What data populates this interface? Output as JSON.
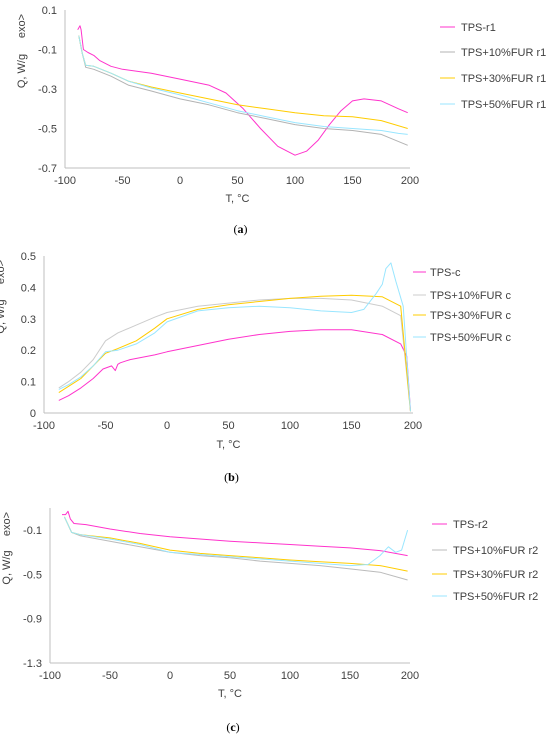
{
  "chart_data": [
    {
      "type": "line",
      "caption": "a",
      "xlabel": "T, °C",
      "ylabel": "Q, W/g",
      "exo_label": "exo>",
      "xlim": [
        -100,
        200
      ],
      "ylim": [
        -0.7,
        0.1
      ],
      "xticks": [
        "-100",
        "-50",
        "0",
        "50",
        "100",
        "150",
        "200"
      ],
      "yticks": [
        "0.1",
        "-0.1",
        "-0.3",
        "-0.5",
        "-0.7"
      ],
      "grid": false,
      "legend": "right",
      "series": [
        {
          "name": "TPS-r1",
          "color": "#ff33cc",
          "x": [
            -89,
            -87,
            -86,
            -84,
            -80,
            -75,
            -70,
            -60,
            -50,
            -25,
            0,
            25,
            40,
            55,
            70,
            85,
            100,
            110,
            120,
            130,
            140,
            150,
            160,
            175,
            190,
            198
          ],
          "y": [
            0.0,
            0.02,
            0.0,
            -0.1,
            -0.115,
            -0.13,
            -0.155,
            -0.185,
            -0.2,
            -0.22,
            -0.25,
            -0.28,
            -0.32,
            -0.4,
            -0.5,
            -0.59,
            -0.635,
            -0.615,
            -0.56,
            -0.48,
            -0.41,
            -0.36,
            -0.35,
            -0.36,
            -0.4,
            -0.42
          ]
        },
        {
          "name": "TPS+10%FUR r1",
          "color": "#b3b3b3",
          "x": [
            -88,
            -85,
            -82,
            -75,
            -60,
            -45,
            -25,
            0,
            25,
            50,
            75,
            100,
            125,
            150,
            175,
            198
          ],
          "y": [
            -0.03,
            -0.12,
            -0.19,
            -0.2,
            -0.235,
            -0.28,
            -0.31,
            -0.35,
            -0.38,
            -0.42,
            -0.45,
            -0.48,
            -0.5,
            -0.51,
            -0.53,
            -0.585
          ]
        },
        {
          "name": "TPS+30%FUR r1",
          "color": "#ffcc00",
          "x": [
            -88,
            -85,
            -82,
            -75,
            -60,
            -45,
            -25,
            0,
            25,
            50,
            75,
            100,
            125,
            150,
            175,
            198
          ],
          "y": [
            -0.03,
            -0.12,
            -0.18,
            -0.185,
            -0.22,
            -0.26,
            -0.29,
            -0.32,
            -0.35,
            -0.38,
            -0.4,
            -0.42,
            -0.435,
            -0.44,
            -0.46,
            -0.5
          ]
        },
        {
          "name": "TPS+50%FUR r1",
          "color": "#99e6ff",
          "x": [
            -88,
            -85,
            -82,
            -75,
            -60,
            -45,
            -25,
            0,
            25,
            50,
            75,
            100,
            125,
            150,
            175,
            190,
            198
          ],
          "y": [
            -0.03,
            -0.12,
            -0.18,
            -0.185,
            -0.22,
            -0.26,
            -0.295,
            -0.33,
            -0.37,
            -0.41,
            -0.44,
            -0.47,
            -0.49,
            -0.5,
            -0.51,
            -0.525,
            -0.53
          ]
        }
      ]
    },
    {
      "type": "line",
      "caption": "b",
      "xlabel": "T, °C",
      "ylabel": "Q, W/g",
      "exo_label": "exo>",
      "xlim": [
        -100,
        200
      ],
      "ylim": [
        0,
        0.5
      ],
      "xticks": [
        "-100",
        "-50",
        "0",
        "50",
        "100",
        "150",
        "200"
      ],
      "yticks": [
        "0.5",
        "0.4",
        "0.3",
        "0.2",
        "0.1",
        "0"
      ],
      "grid": false,
      "legend": "right",
      "series": [
        {
          "name": "TPS-c",
          "color": "#ff33cc",
          "x": [
            -88,
            -80,
            -70,
            -60,
            -52,
            -45,
            -42,
            -40,
            -38,
            -30,
            -10,
            0,
            25,
            50,
            75,
            100,
            125,
            150,
            175,
            190,
            195,
            198
          ],
          "y": [
            0.04,
            0.055,
            0.08,
            0.11,
            0.14,
            0.15,
            0.135,
            0.155,
            0.16,
            0.17,
            0.185,
            0.195,
            0.215,
            0.235,
            0.25,
            0.26,
            0.265,
            0.265,
            0.25,
            0.22,
            0.18,
            0.005
          ]
        },
        {
          "name": "TPS+10%FUR c",
          "color": "#cccccc",
          "x": [
            -88,
            -80,
            -70,
            -60,
            -50,
            -40,
            -25,
            -10,
            0,
            25,
            50,
            75,
            100,
            125,
            150,
            175,
            190,
            198
          ],
          "y": [
            0.08,
            0.1,
            0.13,
            0.17,
            0.23,
            0.255,
            0.28,
            0.305,
            0.32,
            0.34,
            0.35,
            0.36,
            0.365,
            0.365,
            0.36,
            0.34,
            0.31,
            0.005
          ]
        },
        {
          "name": "TPS+30%FUR c",
          "color": "#ffcc00",
          "x": [
            -88,
            -80,
            -70,
            -60,
            -50,
            -40,
            -25,
            -10,
            0,
            25,
            50,
            75,
            100,
            125,
            150,
            175,
            190,
            198
          ],
          "y": [
            0.065,
            0.085,
            0.11,
            0.15,
            0.19,
            0.205,
            0.23,
            0.27,
            0.3,
            0.33,
            0.345,
            0.355,
            0.365,
            0.372,
            0.375,
            0.37,
            0.34,
            0.005
          ]
        },
        {
          "name": "TPS+50%FUR c",
          "color": "#99e6ff",
          "x": [
            -88,
            -80,
            -70,
            -60,
            -50,
            -40,
            -25,
            -10,
            0,
            25,
            50,
            75,
            100,
            125,
            150,
            160,
            170,
            175,
            178,
            182,
            186,
            192,
            198
          ],
          "y": [
            0.075,
            0.09,
            0.115,
            0.15,
            0.195,
            0.2,
            0.22,
            0.255,
            0.29,
            0.325,
            0.335,
            0.34,
            0.335,
            0.325,
            0.32,
            0.33,
            0.38,
            0.41,
            0.46,
            0.478,
            0.42,
            0.34,
            0.005
          ]
        }
      ]
    },
    {
      "type": "line",
      "caption": "c",
      "xlabel": "T, °C",
      "ylabel": "Q, W/g",
      "exo_label": "exo>",
      "xlim": [
        -100,
        200
      ],
      "ylim": [
        -1.3,
        0.1
      ],
      "xticks": [
        "-100",
        "-50",
        "0",
        "50",
        "100",
        "150",
        "200"
      ],
      "yticks": [
        "-0.1",
        "-0.5",
        "-0.9",
        "-1.3"
      ],
      "grid": false,
      "legend": "right",
      "series": [
        {
          "name": "TPS-r2",
          "color": "#ff33cc",
          "x": [
            -90,
            -87,
            -85,
            -83,
            -80,
            -70,
            -50,
            -25,
            0,
            25,
            50,
            75,
            100,
            125,
            150,
            175,
            198
          ],
          "y": [
            0.04,
            0.04,
            0.07,
            0.0,
            -0.04,
            -0.05,
            -0.09,
            -0.13,
            -0.16,
            -0.18,
            -0.2,
            -0.215,
            -0.23,
            -0.245,
            -0.26,
            -0.285,
            -0.33
          ]
        },
        {
          "name": "TPS+10%FUR r2",
          "color": "#bbbbbb",
          "x": [
            -88,
            -85,
            -82,
            -75,
            -50,
            -25,
            0,
            25,
            50,
            75,
            100,
            125,
            150,
            175,
            198
          ],
          "y": [
            0.02,
            -0.05,
            -0.12,
            -0.15,
            -0.2,
            -0.25,
            -0.3,
            -0.33,
            -0.35,
            -0.38,
            -0.4,
            -0.42,
            -0.45,
            -0.48,
            -0.55
          ]
        },
        {
          "name": "TPS+30%FUR r2",
          "color": "#ffcc00",
          "x": [
            -88,
            -85,
            -82,
            -75,
            -50,
            -25,
            0,
            25,
            50,
            75,
            100,
            125,
            150,
            175,
            198
          ],
          "y": [
            0.02,
            -0.05,
            -0.12,
            -0.14,
            -0.17,
            -0.22,
            -0.28,
            -0.31,
            -0.33,
            -0.35,
            -0.37,
            -0.385,
            -0.4,
            -0.42,
            -0.47
          ]
        },
        {
          "name": "TPS+50%FUR r2",
          "color": "#99e6ff",
          "x": [
            -88,
            -85,
            -82,
            -75,
            -50,
            -25,
            0,
            25,
            50,
            75,
            100,
            125,
            150,
            165,
            175,
            182,
            188,
            193,
            198
          ],
          "y": [
            0.02,
            -0.05,
            -0.12,
            -0.14,
            -0.18,
            -0.23,
            -0.3,
            -0.32,
            -0.34,
            -0.36,
            -0.38,
            -0.4,
            -0.42,
            -0.41,
            -0.33,
            -0.25,
            -0.3,
            -0.28,
            -0.1
          ]
        }
      ]
    }
  ]
}
